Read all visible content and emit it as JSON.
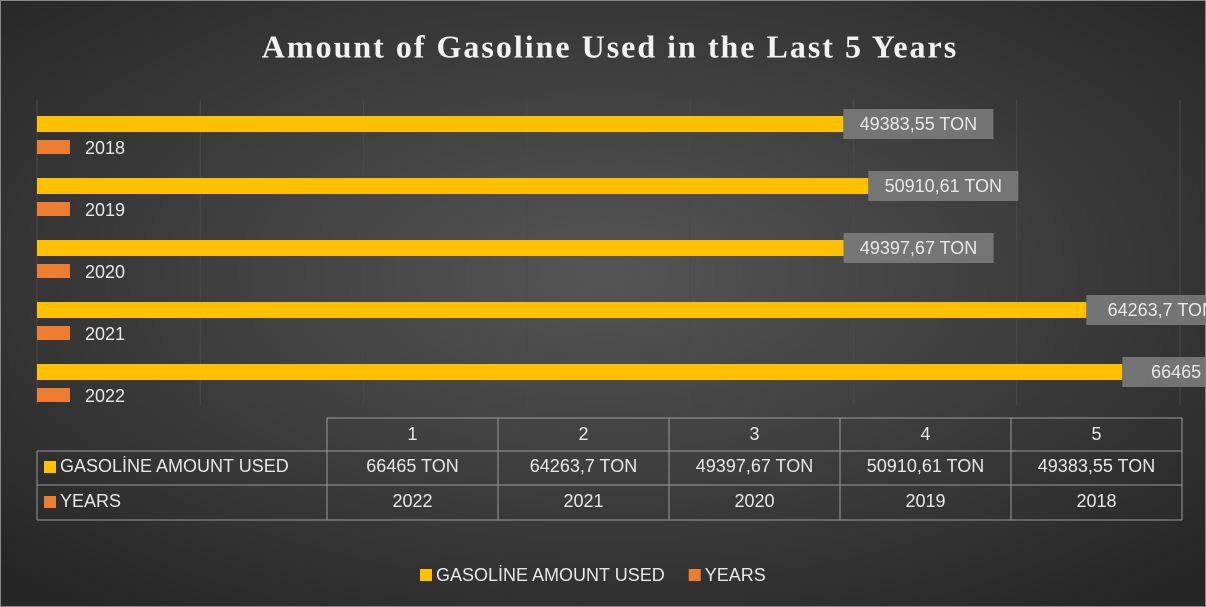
{
  "chart_data": {
    "type": "bar",
    "orientation": "horizontal",
    "title": "Amount of Gasoline Used in the Last 5 Years",
    "categories": [
      "1",
      "2",
      "3",
      "4",
      "5"
    ],
    "series": [
      {
        "name": "GASOLİNE AMOUNT USED",
        "color": "#ffc000",
        "values": [
          66465,
          64263.7,
          49397.67,
          50910.61,
          49383.55
        ],
        "value_labels": [
          "66465 TON",
          "64263,7 TON",
          "49397,67 TON",
          "50910,61 TON",
          "49383,55 TON"
        ]
      },
      {
        "name": "YEARS",
        "color": "#ed7d31",
        "values": [
          2022,
          2021,
          2020,
          2019,
          2018
        ]
      }
    ],
    "xlim": [
      0,
      70000
    ],
    "xticks": [
      0,
      10000,
      20000,
      30000,
      40000,
      50000,
      60000,
      70000
    ],
    "grid": true,
    "legend": "bottom",
    "data_table": true
  }
}
